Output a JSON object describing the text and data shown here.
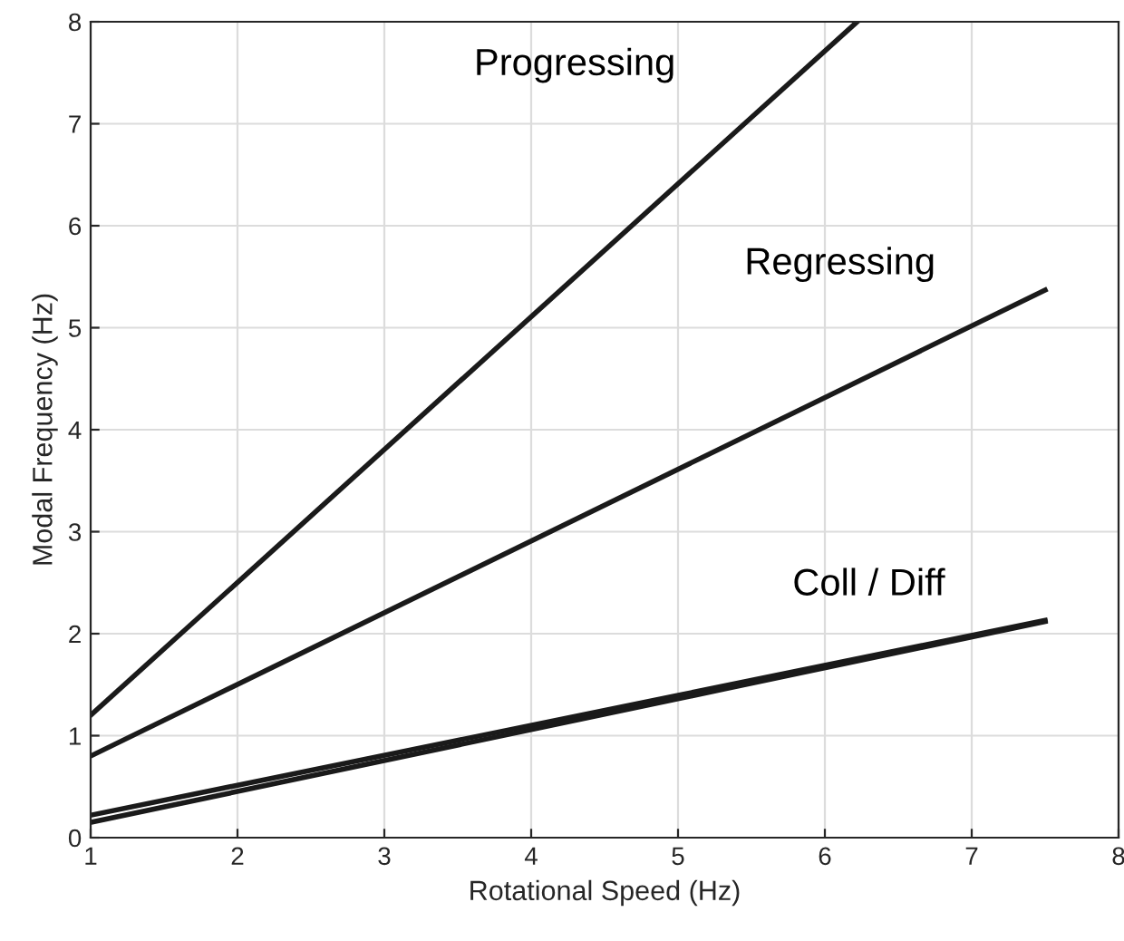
{
  "chart_data": {
    "type": "line",
    "xlabel": "Rotational Speed (Hz)",
    "ylabel": "Modal Frequency (Hz)",
    "series": [
      {
        "color": "#1a1a1a",
        "x": [
          1,
          6.22
        ],
        "values": [
          1.2,
          8
        ]
      },
      {
        "color": "#1a1a1a",
        "x": [
          1,
          7.5
        ],
        "values": [
          0.8,
          5.37
        ]
      },
      {
        "color": "#1a1a1a",
        "x": [
          1,
          7.5
        ],
        "values": [
          0.22,
          2.13
        ]
      },
      {
        "color": "#1a1a1a",
        "x": [
          1,
          7.5
        ],
        "values": [
          0.15,
          2.12
        ]
      }
    ],
    "annotations": [
      "Progressing",
      "Regressing",
      "Coll / Diff"
    ],
    "xlim": [
      1,
      8
    ],
    "ylim": [
      0,
      8
    ],
    "xticks": [
      1,
      2,
      3,
      4,
      5,
      6,
      7,
      8
    ],
    "yticks": [
      0,
      1,
      2,
      3,
      4,
      5,
      6,
      7,
      8
    ],
    "grid": true,
    "marker": "none",
    "line_style": "solid"
  }
}
